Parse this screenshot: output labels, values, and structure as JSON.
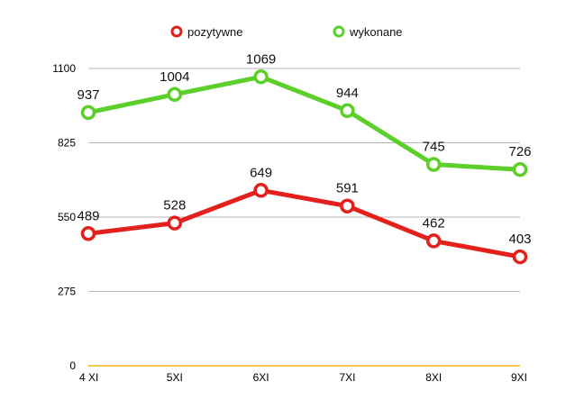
{
  "chart_data": {
    "type": "line",
    "categories": [
      "4 XI",
      "5XI",
      "6XI",
      "7XI",
      "8XI",
      "9XI"
    ],
    "series": [
      {
        "name": "pozytywne",
        "values": [
          489,
          528,
          649,
          591,
          462,
          403
        ],
        "color": "#e3201b"
      },
      {
        "name": "wykonane",
        "values": [
          937,
          1004,
          1069,
          944,
          745,
          726
        ],
        "color": "#5ccf2a"
      }
    ],
    "ylim": [
      0,
      1100
    ],
    "yticks": [
      0,
      275,
      550,
      825,
      1100
    ],
    "grid": true,
    "legend_position": "top",
    "axis_color": "#f2b51b",
    "grid_color": "#b5b5b5"
  }
}
